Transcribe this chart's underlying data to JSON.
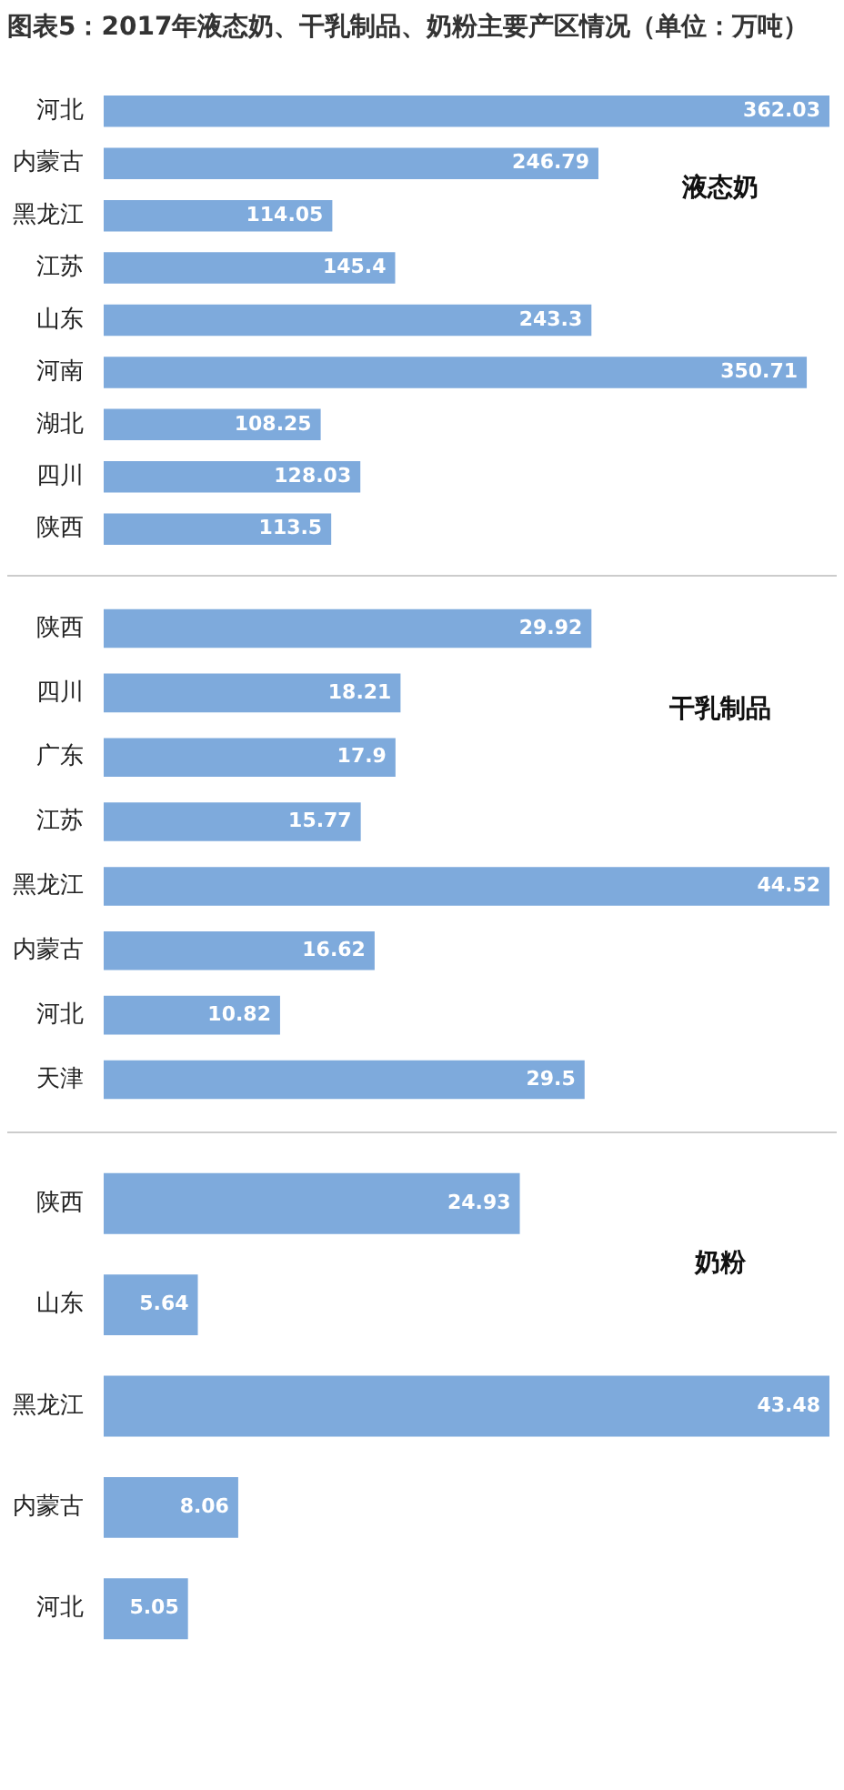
{
  "chart_data": [
    {
      "type": "bar",
      "title": "图表5：2017年液态奶、干乳制品、奶粉主要产区情况（单位：万吨）",
      "orientation": "horizontal",
      "categories": [
        "河北",
        "内蒙古",
        "黑龙江",
        "江苏",
        "山东",
        "河南",
        "湖北",
        "四川",
        "陕西"
      ],
      "values": [
        362.03,
        246.79,
        114.05,
        145.4,
        243.3,
        350.71,
        108.25,
        128.03,
        113.5
      ],
      "color": "#7eaadc",
      "data_labels": true,
      "annotations": [
        "液态奶"
      ]
    },
    {
      "type": "bar",
      "orientation": "horizontal",
      "categories": [
        "陕西",
        "四川",
        "广东",
        "江苏",
        "黑龙江",
        "内蒙古",
        "河北",
        "天津"
      ],
      "values": [
        29.92,
        18.21,
        17.9,
        15.77,
        44.52,
        16.62,
        10.82,
        29.5
      ],
      "color": "#7eaadc",
      "data_labels": true,
      "annotations": [
        "干乳制品"
      ]
    },
    {
      "type": "bar",
      "orientation": "horizontal",
      "categories": [
        "陕西",
        "山东",
        "黑龙江",
        "内蒙古",
        "河北"
      ],
      "values": [
        24.93,
        5.64,
        43.48,
        8.06,
        5.05
      ],
      "color": "#7eaadc",
      "data_labels": true,
      "annotations": [
        "奶粉"
      ]
    }
  ]
}
